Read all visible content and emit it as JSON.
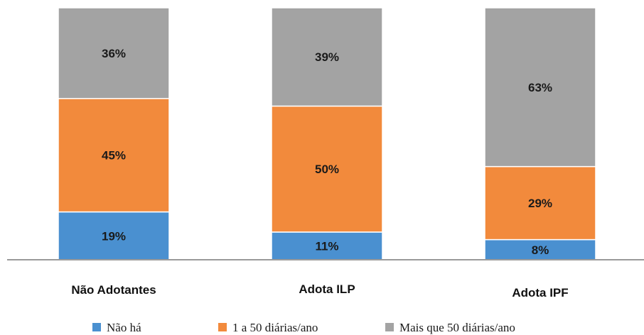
{
  "chart_data": {
    "type": "bar",
    "stacked": true,
    "categories": [
      "Não Adotantes",
      "Adota ILP",
      "Adota IPF"
    ],
    "series": [
      {
        "name": "Não há",
        "values": [
          19,
          11,
          8
        ],
        "color": "#4a90d0"
      },
      {
        "name": "1 a 50 diárias/ano",
        "values": [
          45,
          50,
          29
        ],
        "color": "#f28a3c"
      },
      {
        "name": "Mais que 50 diárias/ano",
        "values": [
          36,
          39,
          63
        ],
        "color": "#a3a3a3"
      }
    ],
    "data_labels": [
      [
        "19%",
        "11%",
        "8%"
      ],
      [
        "45%",
        "50%",
        "29%"
      ],
      [
        "36%",
        "39%",
        "63%"
      ]
    ],
    "title": "",
    "xlabel": "",
    "ylabel": "",
    "ylim": [
      0,
      100
    ],
    "grid": false,
    "legend": "bottom"
  }
}
